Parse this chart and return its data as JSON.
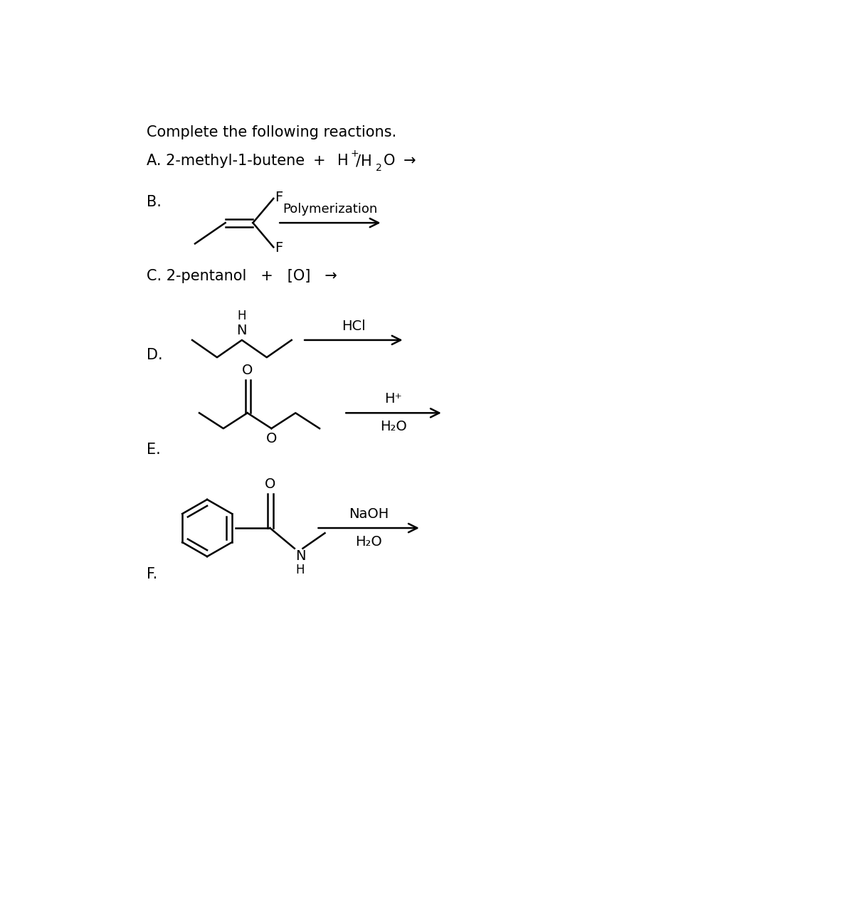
{
  "title": "Complete the following reactions.",
  "bg_color": "#ffffff",
  "section_A_text1": "A. 2-methyl-1-butene",
  "section_A_plus": "+",
  "section_A_reagent": "H⁺/H₂O",
  "section_A_arrow": "→",
  "section_B_label": "B.",
  "section_B_arrow_label": "Polymerization",
  "section_C_text": "C. 2-pentanol   +   [O]   →",
  "section_D_label": "D.",
  "section_D_arrow_label": "HCl",
  "section_E_arrow_top": "H⁺",
  "section_E_arrow_bot": "H₂O",
  "section_E_label": "E.",
  "section_F_arrow_top": "NaOH",
  "section_F_arrow_bot": "H₂O",
  "section_F_label": "F.",
  "font_size_main": 15,
  "font_size_mol": 14,
  "font_size_sub": 11,
  "lw": 1.8
}
